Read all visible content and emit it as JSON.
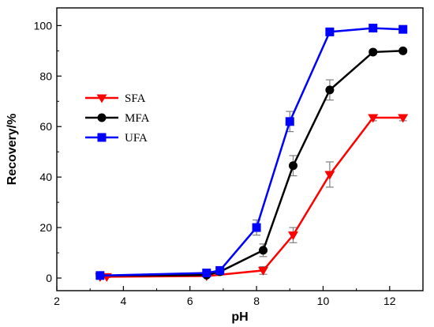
{
  "chart_data": {
    "type": "line",
    "xlabel": "pH",
    "ylabel": "Recovery/%",
    "xlim": [
      2,
      13
    ],
    "ylim": [
      -5,
      107
    ],
    "x_ticks": [
      2,
      4,
      6,
      8,
      10,
      12
    ],
    "y_ticks": [
      0,
      20,
      40,
      60,
      80,
      100
    ],
    "grid": false,
    "legend_position": "center-left",
    "series": [
      {
        "name": "SFA",
        "color": "#ff0000",
        "marker": "triangle-down",
        "x": [
          3.3,
          3.5,
          6.5,
          8.2,
          9.1,
          10.2,
          11.5,
          12.4
        ],
        "y": [
          0.5,
          0.5,
          0.8,
          3,
          17,
          41,
          63.5,
          63.5
        ],
        "err": [
          0.3,
          0.3,
          0.3,
          1.5,
          3,
          5,
          1.2,
          1.2
        ]
      },
      {
        "name": "MFA",
        "color": "#000000",
        "marker": "circle",
        "x": [
          3.3,
          6.5,
          6.9,
          8.2,
          9.1,
          10.2,
          11.5,
          12.4
        ],
        "y": [
          1,
          1.2,
          2.5,
          11,
          44.5,
          74.5,
          89.5,
          90
        ],
        "err": [
          0.4,
          0.4,
          0.8,
          2.5,
          4,
          4,
          0.8,
          0.8
        ]
      },
      {
        "name": "UFA",
        "color": "#0000ff",
        "marker": "square",
        "x": [
          3.3,
          6.5,
          6.9,
          8.0,
          9.0,
          10.2,
          11.5,
          12.4
        ],
        "y": [
          1,
          2,
          3,
          20,
          62,
          97.5,
          99,
          98.5
        ],
        "err": [
          0.4,
          0.4,
          0.8,
          3,
          4,
          1.5,
          0.8,
          0.8
        ]
      }
    ]
  }
}
